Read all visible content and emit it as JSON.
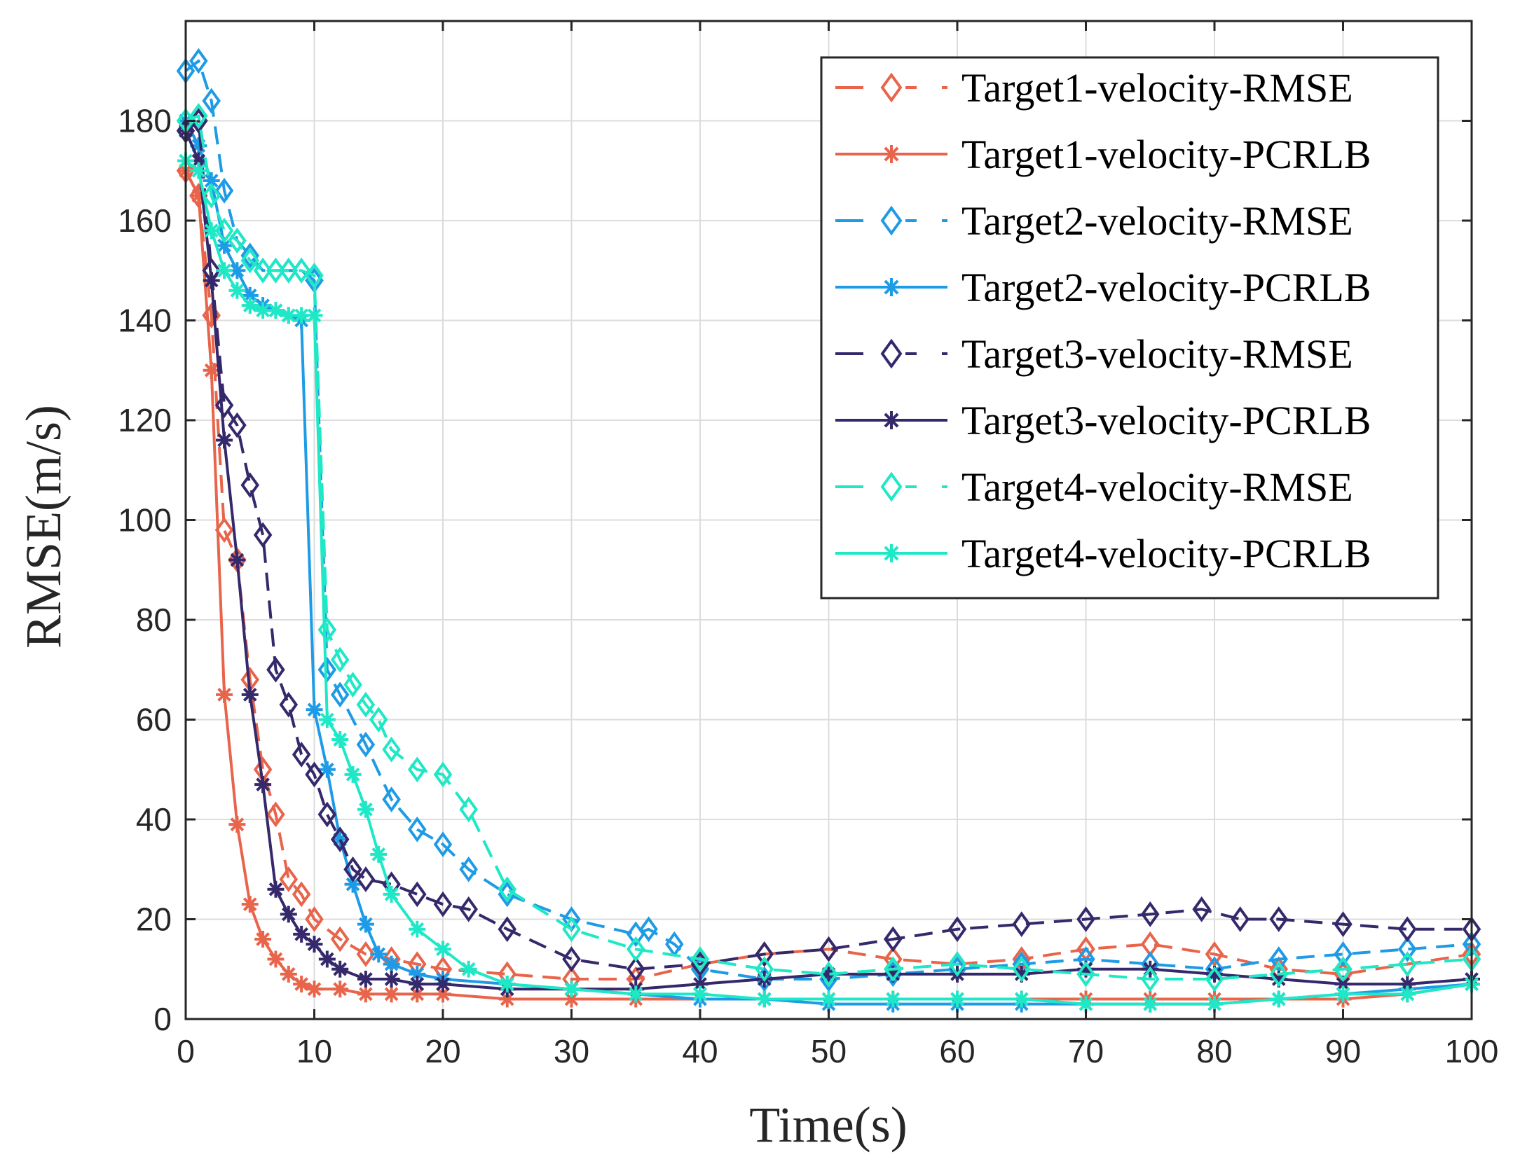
{
  "chart_data": {
    "type": "line",
    "xlabel": "Time(s)",
    "ylabel": "RMSE(m/s)",
    "xlim": [
      0,
      100
    ],
    "ylim": [
      0,
      200
    ],
    "xticks": [
      0,
      10,
      20,
      30,
      40,
      50,
      60,
      70,
      80,
      90,
      100
    ],
    "xtick_labels": [
      "0",
      "10",
      "20",
      "30",
      "40",
      "50",
      "60",
      "70",
      "80",
      "90",
      "100"
    ],
    "yticks": [
      0,
      20,
      40,
      60,
      80,
      100,
      120,
      140,
      160,
      180
    ],
    "ytick_labels": [
      "0",
      "20",
      "40",
      "60",
      "80",
      "100",
      "120",
      "140",
      "160",
      "180"
    ],
    "grid": true,
    "legend_position": "top-right",
    "series": [
      {
        "name": "Target1-velocity-RMSE",
        "color": "#e8644a",
        "line": "dashed",
        "marker": "diamond",
        "x": [
          0,
          1,
          2,
          3,
          4,
          5,
          6,
          7,
          8,
          9,
          10,
          12,
          14,
          16,
          18,
          20,
          25,
          30,
          35,
          40,
          45,
          50,
          55,
          60,
          65,
          70,
          75,
          80,
          85,
          90,
          95,
          100
        ],
        "y": [
          170,
          165,
          141,
          98,
          92,
          68,
          50,
          41,
          28,
          25,
          20,
          16,
          13,
          12,
          11,
          10,
          9,
          8,
          8,
          11,
          13,
          14,
          12,
          11,
          12,
          14,
          15,
          13,
          10,
          9,
          11,
          13
        ]
      },
      {
        "name": "Target1-velocity-PCRLB",
        "color": "#e8644a",
        "line": "solid",
        "marker": "asterisk",
        "x": [
          0,
          1,
          2,
          3,
          4,
          5,
          6,
          7,
          8,
          9,
          10,
          12,
          14,
          16,
          18,
          20,
          25,
          30,
          35,
          40,
          45,
          50,
          55,
          60,
          65,
          70,
          75,
          80,
          85,
          90,
          95,
          100
        ],
        "y": [
          170,
          165,
          130,
          65,
          39,
          23,
          16,
          12,
          9,
          7,
          6,
          6,
          5,
          5,
          5,
          5,
          4,
          4,
          4,
          4,
          4,
          4,
          4,
          4,
          4,
          4,
          4,
          4,
          4,
          4,
          5,
          7
        ]
      },
      {
        "name": "Target2-velocity-RMSE",
        "color": "#1e9be6",
        "line": "dashed",
        "marker": "diamond",
        "x": [
          0,
          1,
          2,
          3,
          4,
          5,
          6,
          7,
          8,
          9,
          10,
          11,
          12,
          14,
          16,
          18,
          20,
          22,
          25,
          30,
          35,
          36,
          38,
          40,
          45,
          50,
          55,
          60,
          65,
          70,
          75,
          80,
          85,
          90,
          95,
          100
        ],
        "y": [
          190,
          192,
          184,
          166,
          156,
          153,
          150,
          150,
          150,
          150,
          148,
          70,
          65,
          55,
          44,
          38,
          35,
          30,
          25,
          20,
          17,
          18,
          15,
          10,
          8,
          8,
          9,
          10,
          11,
          12,
          11,
          10,
          12,
          13,
          14,
          15
        ]
      },
      {
        "name": "Target2-velocity-PCRLB",
        "color": "#1e9be6",
        "line": "solid",
        "marker": "asterisk",
        "x": [
          0,
          1,
          2,
          3,
          4,
          5,
          6,
          7,
          8,
          9,
          10,
          11,
          12,
          13,
          14,
          15,
          16,
          18,
          20,
          25,
          30,
          35,
          40,
          45,
          50,
          55,
          60,
          65,
          70,
          75,
          80,
          85,
          90,
          95,
          100
        ],
        "y": [
          180,
          175,
          168,
          155,
          150,
          145,
          143,
          142,
          141,
          140,
          62,
          50,
          36,
          27,
          19,
          13,
          11,
          9,
          8,
          7,
          6,
          5,
          4,
          4,
          3,
          3,
          3,
          3,
          3,
          3,
          3,
          4,
          5,
          6,
          7
        ]
      },
      {
        "name": "Target3-velocity-RMSE",
        "color": "#35286b",
        "line": "dashed",
        "marker": "diamond",
        "x": [
          0,
          1,
          2,
          3,
          4,
          5,
          6,
          7,
          8,
          9,
          10,
          11,
          12,
          13,
          14,
          16,
          18,
          20,
          22,
          25,
          30,
          35,
          40,
          45,
          50,
          55,
          60,
          65,
          70,
          75,
          79,
          82,
          85,
          90,
          95,
          100
        ],
        "y": [
          178,
          180,
          150,
          123,
          119,
          107,
          97,
          70,
          63,
          53,
          49,
          41,
          36,
          30,
          28,
          27,
          25,
          23,
          22,
          18,
          12,
          10,
          11,
          13,
          14,
          16,
          18,
          19,
          20,
          21,
          22,
          20,
          20,
          19,
          18,
          18
        ]
      },
      {
        "name": "Target3-velocity-PCRLB",
        "color": "#35286b",
        "line": "solid",
        "marker": "asterisk",
        "x": [
          0,
          1,
          2,
          3,
          4,
          5,
          6,
          7,
          8,
          9,
          10,
          11,
          12,
          14,
          16,
          18,
          20,
          25,
          30,
          35,
          40,
          45,
          50,
          55,
          60,
          65,
          70,
          75,
          80,
          85,
          90,
          95,
          100
        ],
        "y": [
          178,
          172,
          148,
          116,
          92,
          65,
          47,
          26,
          21,
          17,
          15,
          12,
          10,
          8,
          8,
          7,
          7,
          6,
          6,
          6,
          7,
          8,
          9,
          9,
          9,
          9,
          10,
          10,
          9,
          8,
          7,
          7,
          8
        ]
      },
      {
        "name": "Target4-velocity-RMSE",
        "color": "#1ee8c6",
        "line": "dashed",
        "marker": "diamond",
        "x": [
          0,
          1,
          2,
          3,
          4,
          5,
          6,
          7,
          8,
          9,
          10,
          11,
          12,
          13,
          14,
          15,
          16,
          18,
          20,
          22,
          25,
          30,
          35,
          40,
          45,
          50,
          55,
          60,
          65,
          70,
          75,
          80,
          85,
          90,
          95,
          100
        ],
        "y": [
          180,
          181,
          165,
          158,
          156,
          152,
          150,
          150,
          150,
          150,
          149,
          78,
          72,
          67,
          63,
          60,
          54,
          50,
          49,
          42,
          26,
          18,
          14,
          12,
          10,
          9,
          10,
          11,
          10,
          9,
          8,
          8,
          9,
          10,
          11,
          12
        ]
      },
      {
        "name": "Target4-velocity-PCRLB",
        "color": "#1ee8c6",
        "line": "solid",
        "marker": "asterisk",
        "x": [
          0,
          1,
          2,
          3,
          4,
          5,
          6,
          7,
          8,
          9,
          10,
          11,
          12,
          13,
          14,
          15,
          16,
          18,
          20,
          22,
          25,
          30,
          35,
          40,
          45,
          50,
          55,
          60,
          65,
          70,
          75,
          80,
          85,
          90,
          95,
          100
        ],
        "y": [
          172,
          170,
          158,
          150,
          146,
          143,
          142,
          142,
          141,
          141,
          141,
          60,
          56,
          49,
          42,
          33,
          25,
          18,
          14,
          10,
          7,
          6,
          5,
          5,
          4,
          4,
          4,
          4,
          4,
          3,
          3,
          3,
          4,
          5,
          5,
          7
        ]
      }
    ]
  }
}
